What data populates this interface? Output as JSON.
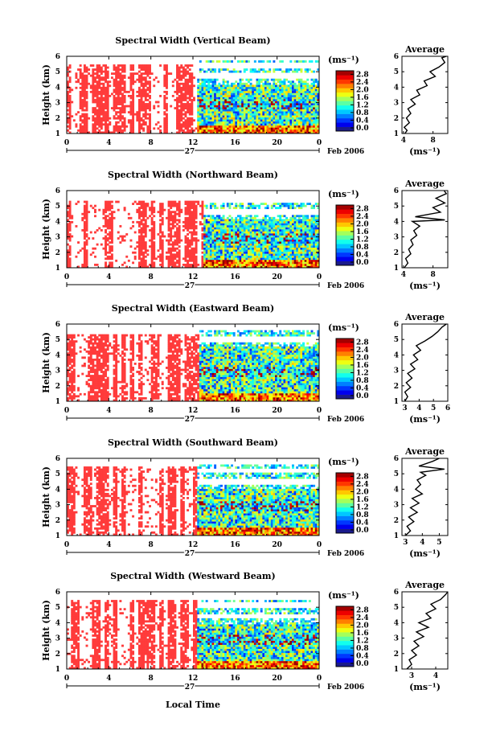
{
  "figure": {
    "footer_label": "Local Time"
  },
  "chart_data": [
    {
      "type": "heatmap",
      "title": "Spectral Width (Vertical Beam)",
      "ylabel": "Height (km)",
      "ylim": [
        1,
        6
      ],
      "yticks": [
        "1",
        "2",
        "3",
        "4",
        "5",
        "6"
      ],
      "xticks": [
        "0",
        "4",
        "8",
        "12",
        "16",
        "20",
        "0"
      ],
      "date_day": "27",
      "date_label": "Feb 2006",
      "colorbar": {
        "unit": "(ms⁻¹)",
        "ticks": [
          "0.0",
          "0.4",
          "0.8",
          "1.2",
          "1.6",
          "2.0",
          "2.4",
          "2.8"
        ],
        "range": [
          0,
          2.9
        ]
      },
      "average": {
        "title": "Average",
        "xlabel": "(ms⁻¹)",
        "xlim": [
          3.8,
          10
        ],
        "xticks": [
          "4",
          "8"
        ],
        "profile": [
          [
            4.2,
            1.0
          ],
          [
            4.5,
            1.2
          ],
          [
            4.1,
            1.4
          ],
          [
            4.8,
            1.7
          ],
          [
            4.4,
            2.0
          ],
          [
            5.0,
            2.3
          ],
          [
            4.6,
            2.6
          ],
          [
            5.6,
            2.9
          ],
          [
            5.0,
            3.2
          ],
          [
            6.2,
            3.5
          ],
          [
            5.8,
            3.8
          ],
          [
            7.2,
            4.1
          ],
          [
            6.8,
            4.4
          ],
          [
            8.3,
            4.7
          ],
          [
            7.6,
            5.0
          ],
          [
            8.8,
            5.3
          ],
          [
            9.6,
            5.6
          ],
          [
            9.2,
            5.9
          ],
          [
            9.8,
            6.0
          ]
        ]
      },
      "pattern": {
        "cutoff": 12.5,
        "sparse_top": 5.5,
        "dense_top": 4.2,
        "upper_top": 5.2,
        "cells": [
          [
            0,
            1.0
          ],
          [
            4,
            1.1
          ]
        ]
      }
    },
    {
      "type": "heatmap",
      "title": "Spectral Width (Northward Beam)",
      "ylabel": "Height (km)",
      "ylim": [
        1,
        6
      ],
      "yticks": [
        "1",
        "2",
        "3",
        "4",
        "5",
        "6"
      ],
      "xticks": [
        "0",
        "4",
        "8",
        "12",
        "16",
        "20",
        "0"
      ],
      "date_day": "27",
      "date_label": "Feb 2006",
      "colorbar": {
        "unit": "(ms⁻¹)",
        "ticks": [
          "0.0",
          "0.4",
          "0.8",
          "1.2",
          "1.6",
          "2.0",
          "2.4",
          "2.8"
        ],
        "range": [
          0,
          2.9
        ]
      },
      "average": {
        "title": "Average",
        "xlabel": "(ms⁻¹)",
        "xlim": [
          3.8,
          10
        ],
        "xticks": [
          "4",
          "8"
        ],
        "profile": [
          [
            4.1,
            1.0
          ],
          [
            4.6,
            1.3
          ],
          [
            4.3,
            1.6
          ],
          [
            5.0,
            1.9
          ],
          [
            4.7,
            2.2
          ],
          [
            5.3,
            2.5
          ],
          [
            5.0,
            2.8
          ],
          [
            5.8,
            3.1
          ],
          [
            5.4,
            3.4
          ],
          [
            6.2,
            3.7
          ],
          [
            5.2,
            4.0
          ],
          [
            9.6,
            4.1
          ],
          [
            5.6,
            4.3
          ],
          [
            9.0,
            4.6
          ],
          [
            8.0,
            4.9
          ],
          [
            9.6,
            5.2
          ],
          [
            8.4,
            5.5
          ],
          [
            9.8,
            5.8
          ],
          [
            9.5,
            6.0
          ]
        ]
      },
      "pattern": {
        "cutoff": 13.0,
        "sparse_top": 5.3,
        "dense_top": 4.1,
        "upper_top": 4.8,
        "cells": [
          [
            0,
            1.0
          ],
          [
            4,
            1.1
          ]
        ]
      }
    },
    {
      "type": "heatmap",
      "title": "Spectral Width (Eastward Beam)",
      "ylabel": "Height (km)",
      "ylim": [
        1,
        6
      ],
      "yticks": [
        "1",
        "2",
        "3",
        "4",
        "5",
        "6"
      ],
      "xticks": [
        "0",
        "4",
        "8",
        "12",
        "16",
        "20",
        "0"
      ],
      "date_day": "27",
      "date_label": "Feb 2006",
      "colorbar": {
        "unit": "(ms⁻¹)",
        "ticks": [
          "0.0",
          "0.4",
          "0.8",
          "1.2",
          "1.6",
          "2.0",
          "2.4",
          "2.8"
        ],
        "range": [
          0,
          2.9
        ]
      },
      "average": {
        "title": "Average",
        "xlabel": "(ms⁻¹)",
        "xlim": [
          2.8,
          6
        ],
        "xticks": [
          "3",
          "4",
          "5",
          "6"
        ],
        "profile": [
          [
            3.0,
            1.0
          ],
          [
            3.2,
            1.3
          ],
          [
            3.0,
            1.6
          ],
          [
            3.4,
            1.9
          ],
          [
            3.1,
            2.2
          ],
          [
            3.5,
            2.5
          ],
          [
            3.2,
            2.8
          ],
          [
            3.7,
            3.1
          ],
          [
            3.4,
            3.4
          ],
          [
            3.9,
            3.7
          ],
          [
            3.6,
            4.0
          ],
          [
            4.1,
            4.3
          ],
          [
            3.8,
            4.6
          ],
          [
            4.4,
            4.9
          ],
          [
            4.9,
            5.2
          ],
          [
            5.3,
            5.5
          ],
          [
            5.6,
            5.8
          ],
          [
            5.9,
            6.0
          ]
        ]
      },
      "pattern": {
        "cutoff": 12.6,
        "sparse_top": 5.4,
        "dense_top": 4.5,
        "upper_top": 5.2,
        "cells": [
          [
            0,
            1.0
          ],
          [
            4,
            1.1
          ]
        ]
      }
    },
    {
      "type": "heatmap",
      "title": "Spectral Width (Southward Beam)",
      "ylabel": "Height (km)",
      "ylim": [
        1,
        6
      ],
      "yticks": [
        "1",
        "2",
        "3",
        "4",
        "5",
        "6"
      ],
      "xticks": [
        "0",
        "4",
        "8",
        "12",
        "16",
        "20",
        "0"
      ],
      "date_day": "27",
      "date_label": "Feb 2006",
      "colorbar": {
        "unit": "(ms⁻¹)",
        "ticks": [
          "0.0",
          "0.4",
          "0.8",
          "1.2",
          "1.6",
          "2.0",
          "2.4",
          "2.8"
        ],
        "range": [
          0,
          2.9
        ]
      },
      "average": {
        "title": "Average",
        "xlabel": "(ms⁻¹)",
        "xlim": [
          2.8,
          5.5
        ],
        "xticks": [
          "3",
          "4",
          "5"
        ],
        "profile": [
          [
            3.0,
            1.0
          ],
          [
            3.3,
            1.3
          ],
          [
            3.1,
            1.6
          ],
          [
            3.5,
            1.9
          ],
          [
            3.2,
            2.2
          ],
          [
            3.7,
            2.5
          ],
          [
            3.3,
            2.8
          ],
          [
            3.8,
            3.1
          ],
          [
            3.4,
            3.4
          ],
          [
            4.0,
            3.7
          ],
          [
            3.6,
            4.0
          ],
          [
            3.9,
            4.3
          ],
          [
            3.7,
            4.6
          ],
          [
            4.2,
            4.9
          ],
          [
            3.9,
            5.1
          ],
          [
            5.3,
            5.3
          ],
          [
            3.8,
            5.5
          ],
          [
            4.6,
            5.8
          ],
          [
            5.0,
            6.0
          ]
        ]
      },
      "pattern": {
        "cutoff": 12.3,
        "sparse_top": 5.5,
        "dense_top": 4.0,
        "upper_top": 5.0,
        "cells": [
          [
            0,
            1.0
          ],
          [
            4,
            1.1
          ]
        ]
      }
    },
    {
      "type": "heatmap",
      "title": "Spectral Width (Westward Beam)",
      "ylabel": "Height (km)",
      "ylim": [
        1,
        6
      ],
      "yticks": [
        "1",
        "2",
        "3",
        "4",
        "5",
        "6"
      ],
      "xticks": [
        "0",
        "4",
        "8",
        "12",
        "16",
        "20",
        "0"
      ],
      "date_day": "27",
      "date_label": "Feb 2006",
      "colorbar": {
        "unit": "(ms⁻¹)",
        "ticks": [
          "0.0",
          "0.4",
          "0.8",
          "1.2",
          "1.6",
          "2.0",
          "2.4",
          "2.8"
        ],
        "range": [
          0,
          2.9
        ]
      },
      "average": {
        "title": "Average",
        "xlabel": "(ms⁻¹)",
        "xlim": [
          2.6,
          4.5
        ],
        "xticks": [
          "3",
          "4"
        ],
        "profile": [
          [
            2.8,
            1.0
          ],
          [
            3.0,
            1.3
          ],
          [
            2.9,
            1.6
          ],
          [
            3.2,
            1.9
          ],
          [
            3.0,
            2.2
          ],
          [
            3.3,
            2.5
          ],
          [
            3.1,
            2.8
          ],
          [
            3.5,
            3.1
          ],
          [
            3.2,
            3.4
          ],
          [
            3.7,
            3.7
          ],
          [
            3.3,
            4.0
          ],
          [
            3.8,
            4.3
          ],
          [
            3.6,
            4.6
          ],
          [
            4.0,
            4.9
          ],
          [
            3.8,
            5.2
          ],
          [
            4.2,
            5.5
          ],
          [
            4.4,
            5.8
          ],
          [
            4.5,
            6.0
          ]
        ]
      },
      "pattern": {
        "cutoff": 12.4,
        "sparse_top": 5.5,
        "dense_top": 3.9,
        "upper_top": 4.9,
        "cells": [
          [
            0,
            1.0
          ],
          [
            4,
            1.1
          ]
        ]
      }
    }
  ]
}
